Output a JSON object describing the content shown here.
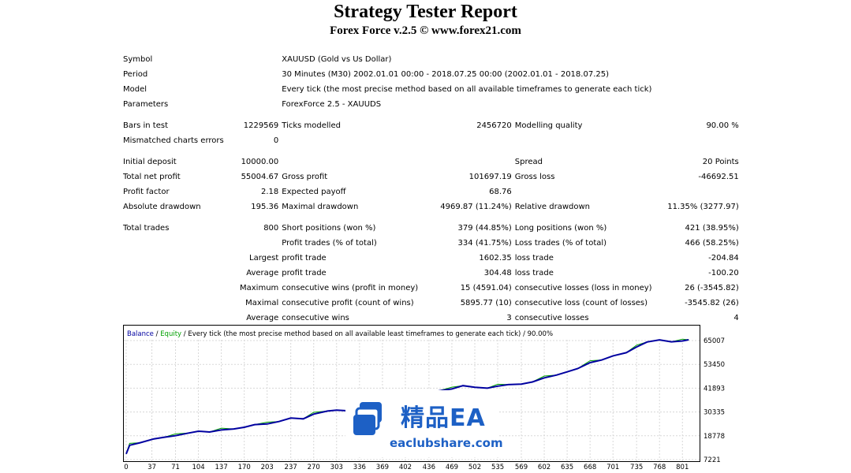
{
  "report": {
    "title": "Strategy Tester Report",
    "subtitle": "Forex Force v.2.5 © www.forex21.com"
  },
  "summary": {
    "symbol_label": "Symbol",
    "symbol_value": "XAUUSD (Gold vs Us Dollar)",
    "period_label": "Period",
    "period_value": "30 Minutes (M30) 2002.01.01 00:00 - 2018.07.25 00:00 (2002.01.01 - 2018.07.25)",
    "model_label": "Model",
    "model_value": "Every tick (the most precise method based on all available timeframes to generate each tick)",
    "parameters_label": "Parameters",
    "parameters_value": "ForexForce 2.5 - XAUUDS",
    "bars_label": "Bars in test",
    "bars_value": "1229569",
    "ticks_label": "Ticks modelled",
    "ticks_value": "2456720",
    "quality_label": "Modelling quality",
    "quality_value": "90.00 %",
    "mismatch_label": "Mismatched charts errors",
    "mismatch_value": "0",
    "deposit_label": "Initial deposit",
    "deposit_value": "10000.00",
    "spread_label": "Spread",
    "spread_value": "20 Points",
    "net_label": "Total net profit",
    "net_value": "55004.67",
    "gross_profit_label": "Gross profit",
    "gross_profit_value": "101697.19",
    "gross_loss_label": "Gross loss",
    "gross_loss_value": "-46692.51",
    "pf_label": "Profit factor",
    "pf_value": "2.18",
    "payoff_label": "Expected payoff",
    "payoff_value": "68.76",
    "abs_dd_label": "Absolute drawdown",
    "abs_dd_value": "195.36",
    "max_dd_label": "Maximal drawdown",
    "max_dd_value": "4969.87 (11.24%)",
    "rel_dd_label": "Relative drawdown",
    "rel_dd_value": "11.35% (3277.97)",
    "trades_label": "Total trades",
    "trades_value": "800",
    "short_label": "Short positions (won %)",
    "short_value": "379 (44.85%)",
    "long_label": "Long positions (won %)",
    "long_value": "421 (38.95%)",
    "profit_trades_label": "Profit trades (% of total)",
    "profit_trades_value": "334 (41.75%)",
    "loss_trades_label": "Loss trades (% of total)",
    "loss_trades_value": "466 (58.25%)",
    "largest_label": "Largest",
    "largest_profit_label": "profit trade",
    "largest_profit_value": "1602.35",
    "largest_loss_label": "loss trade",
    "largest_loss_value": "-204.84",
    "average_label": "Average",
    "average_profit_label": "profit trade",
    "average_profit_value": "304.48",
    "average_loss_label": "loss trade",
    "average_loss_value": "-100.20",
    "maximum_label": "Maximum",
    "max_wins_label": "consecutive wins (profit in money)",
    "max_wins_value": "15 (4591.04)",
    "max_losses_label": "consecutive losses (loss in money)",
    "max_losses_value": "26 (-3545.82)",
    "maximal_label": "Maximal",
    "maximal_profit_label": "consecutive profit (count of wins)",
    "maximal_profit_value": "5895.77 (10)",
    "maximal_loss_label": "consecutive loss (count of losses)",
    "maximal_loss_value": "-3545.82 (26)",
    "avg_consec_label": "Average",
    "avg_wins_label": "consecutive wins",
    "avg_wins_value": "3",
    "avg_losses_label": "consecutive losses",
    "avg_losses_value": "4"
  },
  "watermark": {
    "text_cn": "精品EA",
    "text_url": "eaclubshare.com"
  },
  "chart_data": {
    "type": "line",
    "legend": {
      "balance": "Balance",
      "sep1": " / ",
      "equity": "Equity",
      "rest": " / Every tick (the most precise method based on all available least timeframes to generate each tick) / 90.00%"
    },
    "colors": {
      "balance": "#0000a0",
      "equity": "#00a000",
      "legend_text": "#0000a0",
      "grid": "#d8d8d8"
    },
    "x_ticks": [
      "0",
      "37",
      "71",
      "104",
      "137",
      "170",
      "203",
      "237",
      "270",
      "303",
      "336",
      "369",
      "402",
      "436",
      "469",
      "502",
      "535",
      "569",
      "602",
      "635",
      "668",
      "701",
      "735",
      "768",
      "801"
    ],
    "y_ticks": [
      "65007",
      "53450",
      "41893",
      "30335",
      "18778",
      "7221"
    ],
    "xlim": [
      0,
      820
    ],
    "ylim": [
      7221,
      65007
    ],
    "series": [
      {
        "name": "Balance",
        "x": [
          0,
          5,
          20,
          40,
          55,
          71,
          90,
          104,
          120,
          137,
          155,
          170,
          185,
          203,
          220,
          237,
          255,
          270,
          290,
          303,
          320,
          336,
          350,
          369,
          385,
          402,
          420,
          436,
          450,
          469,
          485,
          502,
          520,
          535,
          550,
          569,
          585,
          602,
          620,
          635,
          650,
          668,
          685,
          701,
          720,
          735,
          750,
          768,
          785,
          801,
          810
        ],
        "y": [
          10000,
          14200,
          15400,
          17300,
          18100,
          18800,
          20100,
          21000,
          20600,
          21600,
          22100,
          22900,
          24200,
          24500,
          25700,
          27400,
          27000,
          29300,
          30800,
          31200,
          30900,
          31400,
          31900,
          33000,
          34600,
          35200,
          36400,
          38500,
          40600,
          41500,
          43100,
          42300,
          41900,
          42900,
          43600,
          43900,
          44900,
          46900,
          48300,
          49800,
          51400,
          54300,
          55600,
          57600,
          59100,
          61900,
          64300,
          65300,
          64400,
          64800,
          65400
        ]
      }
    ]
  }
}
